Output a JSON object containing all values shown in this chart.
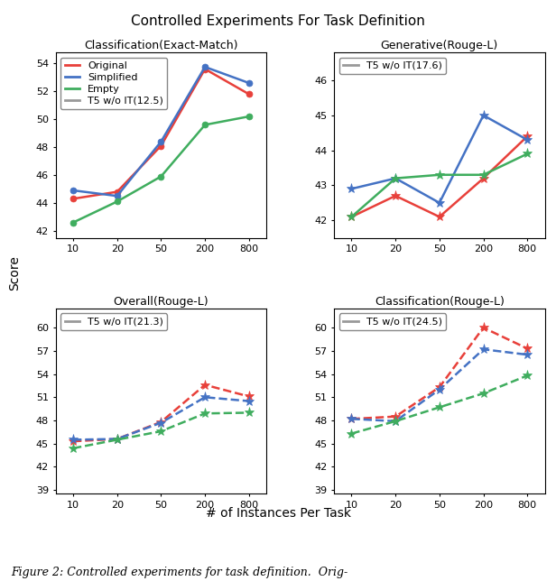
{
  "title": "Controlled Experiments For Task Definition",
  "xlabel": "# of Instances Per Task",
  "ylabel": "Score",
  "x_ticks": [
    10,
    20,
    50,
    200,
    800
  ],
  "x_positions": [
    0,
    1,
    2,
    3,
    4
  ],
  "subplots": [
    {
      "title": "Classification(Exact-Match)",
      "ylim": [
        41.5,
        54.8
      ],
      "yticks": [
        42,
        44,
        46,
        48,
        50,
        52,
        54
      ],
      "hline_label": "T5 w/o IT(12.5)",
      "dashed": false,
      "series": [
        {
          "label": "Original",
          "color": "#e8403a",
          "values": [
            44.3,
            44.8,
            48.1,
            53.6,
            51.8
          ],
          "marker": "o"
        },
        {
          "label": "Simplified",
          "color": "#4472c4",
          "values": [
            44.9,
            44.5,
            48.4,
            53.75,
            52.6
          ],
          "marker": "o"
        },
        {
          "label": "Empty",
          "color": "#3fad5e",
          "values": [
            42.6,
            44.1,
            45.9,
            49.6,
            50.2
          ],
          "marker": "o"
        }
      ],
      "legend_idx": 0
    },
    {
      "title": "Generative(Rouge-L)",
      "ylim": [
        41.5,
        46.8
      ],
      "yticks": [
        42,
        43,
        44,
        45,
        46
      ],
      "hline_label": "T5 w/o IT(17.6)",
      "dashed": false,
      "series": [
        {
          "label": "Original",
          "color": "#e8403a",
          "values": [
            42.1,
            42.7,
            42.1,
            43.2,
            44.4
          ],
          "marker": "*"
        },
        {
          "label": "Simplified",
          "color": "#4472c4",
          "values": [
            42.9,
            43.2,
            42.5,
            45.0,
            44.3
          ],
          "marker": "*"
        },
        {
          "label": "Empty",
          "color": "#3fad5e",
          "values": [
            42.1,
            43.2,
            43.3,
            43.3,
            43.9
          ],
          "marker": "*"
        }
      ],
      "legend_idx": 1
    },
    {
      "title": "Overall(Rouge-L)",
      "ylim": [
        38.5,
        62.5
      ],
      "yticks": [
        39,
        42,
        45,
        48,
        51,
        54,
        57,
        60
      ],
      "hline_label": "T5 w/o IT(21.3)",
      "dashed": true,
      "series": [
        {
          "label": "Original",
          "color": "#e8403a",
          "values": [
            45.3,
            45.6,
            47.8,
            52.6,
            51.1
          ],
          "marker": "*"
        },
        {
          "label": "Simplified",
          "color": "#4472c4",
          "values": [
            45.5,
            45.6,
            47.7,
            51.0,
            50.5
          ],
          "marker": "*"
        },
        {
          "label": "Empty",
          "color": "#3fad5e",
          "values": [
            44.4,
            45.5,
            46.6,
            48.9,
            49.0
          ],
          "marker": "*"
        }
      ],
      "legend_idx": 1
    },
    {
      "title": "Classification(Rouge-L)",
      "ylim": [
        38.5,
        62.5
      ],
      "yticks": [
        39,
        42,
        45,
        48,
        51,
        54,
        57,
        60
      ],
      "hline_label": "T5 w/o IT(24.5)",
      "dashed": true,
      "series": [
        {
          "label": "Original",
          "color": "#e8403a",
          "values": [
            48.2,
            48.5,
            52.3,
            60.0,
            57.3
          ],
          "marker": "*"
        },
        {
          "label": "Simplified",
          "color": "#4472c4",
          "values": [
            48.2,
            47.9,
            52.0,
            57.2,
            56.5
          ],
          "marker": "*"
        },
        {
          "label": "Empty",
          "color": "#3fad5e",
          "values": [
            46.3,
            47.9,
            49.7,
            51.5,
            53.8
          ],
          "marker": "*"
        }
      ],
      "legend_idx": 1
    }
  ],
  "legend_full": [
    {
      "label": "Original",
      "color": "#e8403a",
      "lw": 2,
      "ls": "-"
    },
    {
      "label": "Simplified",
      "color": "#4472c4",
      "lw": 2,
      "ls": "-"
    },
    {
      "label": "Empty",
      "color": "#3fad5e",
      "lw": 2,
      "ls": "-"
    },
    {
      "label": "T5 w/o IT(12.5)",
      "color": "#999999",
      "lw": 2,
      "ls": "-"
    }
  ],
  "caption": "Figure 2: Controlled experiments for task definition.  Orig-",
  "hline_color": "#999999",
  "title_fontsize": 11,
  "subplot_title_fontsize": 9,
  "tick_fontsize": 8,
  "legend_fontsize": 8
}
